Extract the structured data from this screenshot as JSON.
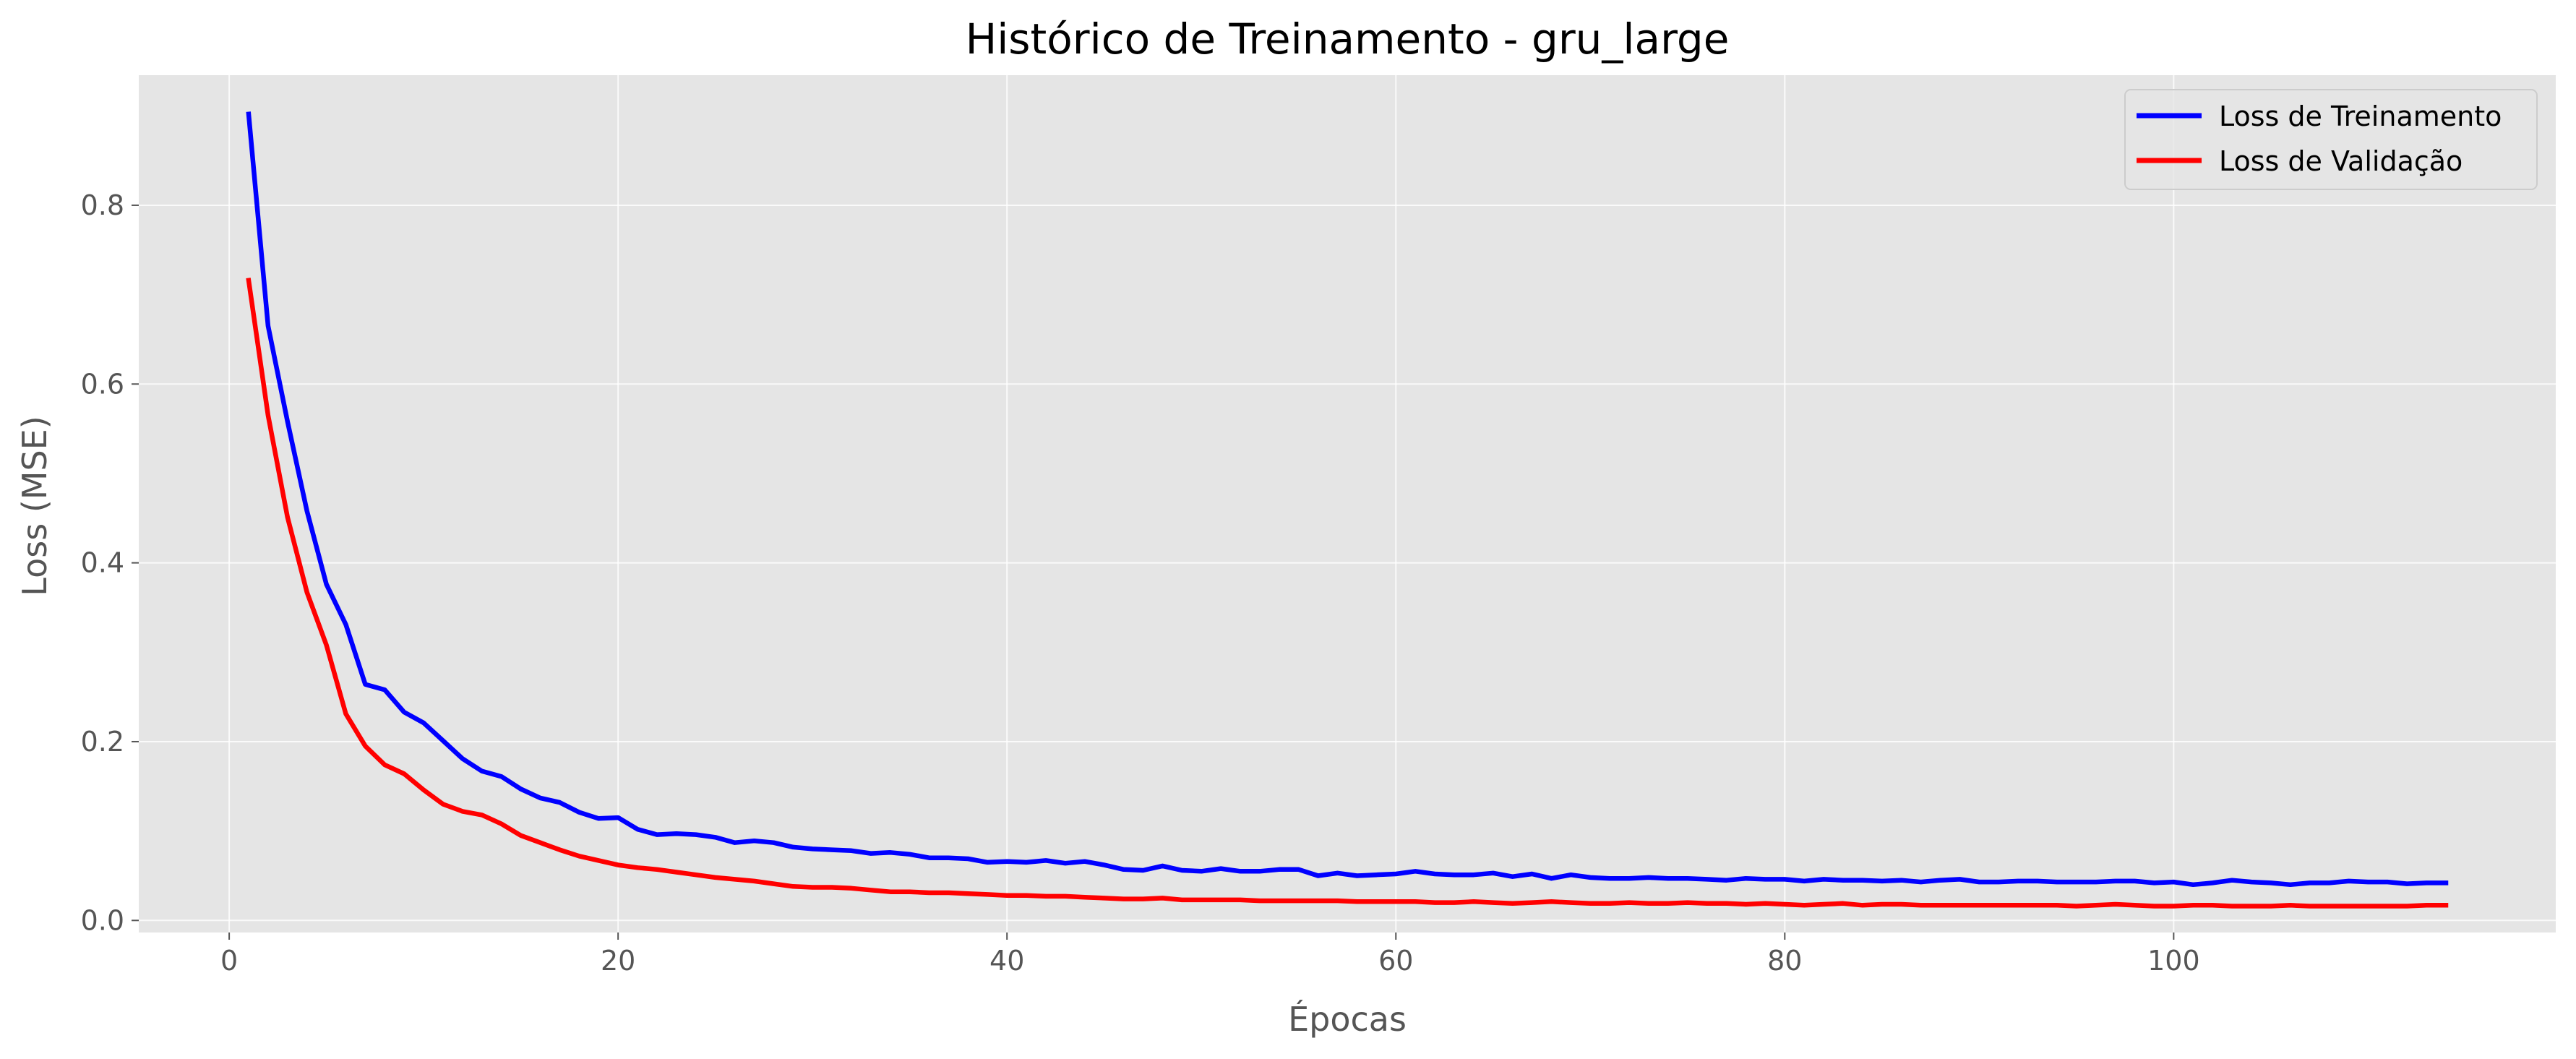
{
  "chart_data": {
    "type": "line",
    "title": "Histórico de Treinamento - gru_large",
    "xlabel": "Épocas",
    "ylabel": "Loss (MSE)",
    "xlim": [
      -4.65,
      119.65
    ],
    "ylim": [
      -0.0135,
      0.9455
    ],
    "xticks": [
      0,
      20,
      40,
      60,
      80,
      100
    ],
    "yticks": [
      0.0,
      0.2,
      0.4,
      0.6,
      0.8
    ],
    "xtick_labels": [
      "0",
      "20",
      "40",
      "60",
      "80",
      "100"
    ],
    "ytick_labels": [
      "0.0",
      "0.2",
      "0.4",
      "0.6",
      "0.8"
    ],
    "grid": true,
    "legend_position": "top-right",
    "background": "#e5e5e5",
    "series": [
      {
        "name": "Loss de Treinamento",
        "color": "#0000ff",
        "x": [
          1,
          2,
          3,
          4,
          5,
          6,
          7,
          8,
          9,
          10,
          11,
          12,
          13,
          14,
          15,
          16,
          17,
          18,
          19,
          20,
          21,
          22,
          23,
          24,
          25,
          26,
          27,
          28,
          29,
          30,
          31,
          32,
          33,
          34,
          35,
          36,
          37,
          38,
          39,
          40,
          41,
          42,
          43,
          44,
          45,
          46,
          47,
          48,
          49,
          50,
          51,
          52,
          53,
          54,
          55,
          56,
          57,
          58,
          59,
          60,
          61,
          62,
          63,
          64,
          65,
          66,
          67,
          68,
          69,
          70,
          71,
          72,
          73,
          74,
          75,
          76,
          77,
          78,
          79,
          80,
          81,
          82,
          83,
          84,
          85,
          86,
          87,
          88,
          89,
          90,
          91,
          92,
          93,
          94,
          95,
          96,
          97,
          98,
          99,
          100,
          101,
          102,
          103,
          104,
          105,
          106,
          107,
          108,
          109,
          110,
          111,
          112,
          113,
          114
        ],
        "values": [
          0.902,
          0.665,
          0.558,
          0.458,
          0.376,
          0.331,
          0.264,
          0.258,
          0.233,
          0.221,
          0.201,
          0.181,
          0.167,
          0.161,
          0.147,
          0.137,
          0.132,
          0.121,
          0.114,
          0.115,
          0.102,
          0.096,
          0.097,
          0.096,
          0.093,
          0.087,
          0.089,
          0.087,
          0.082,
          0.08,
          0.079,
          0.078,
          0.075,
          0.076,
          0.074,
          0.07,
          0.07,
          0.069,
          0.065,
          0.066,
          0.065,
          0.067,
          0.064,
          0.066,
          0.062,
          0.057,
          0.056,
          0.061,
          0.056,
          0.055,
          0.058,
          0.055,
          0.055,
          0.057,
          0.057,
          0.05,
          0.053,
          0.05,
          0.051,
          0.052,
          0.055,
          0.052,
          0.051,
          0.051,
          0.053,
          0.049,
          0.052,
          0.047,
          0.051,
          0.048,
          0.047,
          0.047,
          0.048,
          0.047,
          0.047,
          0.046,
          0.045,
          0.047,
          0.046,
          0.046,
          0.044,
          0.046,
          0.045,
          0.045,
          0.044,
          0.045,
          0.043,
          0.045,
          0.046,
          0.043,
          0.043,
          0.044,
          0.044,
          0.043,
          0.043,
          0.043,
          0.044,
          0.044,
          0.042,
          0.043,
          0.04,
          0.042,
          0.045,
          0.043,
          0.042,
          0.04,
          0.042,
          0.042,
          0.044,
          0.043,
          0.043,
          0.041,
          0.042,
          0.042
        ]
      },
      {
        "name": "Loss de Validação",
        "color": "#ff0000",
        "x": [
          1,
          2,
          3,
          4,
          5,
          6,
          7,
          8,
          9,
          10,
          11,
          12,
          13,
          14,
          15,
          16,
          17,
          18,
          19,
          20,
          21,
          22,
          23,
          24,
          25,
          26,
          27,
          28,
          29,
          30,
          31,
          32,
          33,
          34,
          35,
          36,
          37,
          38,
          39,
          40,
          41,
          42,
          43,
          44,
          45,
          46,
          47,
          48,
          49,
          50,
          51,
          52,
          53,
          54,
          55,
          56,
          57,
          58,
          59,
          60,
          61,
          62,
          63,
          64,
          65,
          66,
          67,
          68,
          69,
          70,
          71,
          72,
          73,
          74,
          75,
          76,
          77,
          78,
          79,
          80,
          81,
          82,
          83,
          84,
          85,
          86,
          87,
          88,
          89,
          90,
          91,
          92,
          93,
          94,
          95,
          96,
          97,
          98,
          99,
          100,
          101,
          102,
          103,
          104,
          105,
          106,
          107,
          108,
          109,
          110,
          111,
          112,
          113,
          114
        ],
        "values": [
          0.716,
          0.565,
          0.451,
          0.367,
          0.308,
          0.231,
          0.195,
          0.174,
          0.164,
          0.146,
          0.13,
          0.122,
          0.118,
          0.108,
          0.095,
          0.087,
          0.079,
          0.072,
          0.067,
          0.062,
          0.059,
          0.057,
          0.054,
          0.051,
          0.048,
          0.046,
          0.044,
          0.041,
          0.038,
          0.037,
          0.037,
          0.036,
          0.034,
          0.032,
          0.032,
          0.031,
          0.031,
          0.03,
          0.029,
          0.028,
          0.028,
          0.027,
          0.027,
          0.026,
          0.025,
          0.024,
          0.024,
          0.025,
          0.023,
          0.023,
          0.023,
          0.023,
          0.022,
          0.022,
          0.022,
          0.022,
          0.022,
          0.021,
          0.021,
          0.021,
          0.021,
          0.02,
          0.02,
          0.021,
          0.02,
          0.019,
          0.02,
          0.021,
          0.02,
          0.019,
          0.019,
          0.02,
          0.019,
          0.019,
          0.02,
          0.019,
          0.019,
          0.018,
          0.019,
          0.018,
          0.017,
          0.018,
          0.019,
          0.017,
          0.018,
          0.018,
          0.017,
          0.017,
          0.017,
          0.017,
          0.017,
          0.017,
          0.017,
          0.017,
          0.016,
          0.017,
          0.018,
          0.017,
          0.016,
          0.016,
          0.017,
          0.017,
          0.016,
          0.016,
          0.016,
          0.017,
          0.016,
          0.016,
          0.016,
          0.016,
          0.016,
          0.016,
          0.017,
          0.017
        ]
      }
    ]
  }
}
